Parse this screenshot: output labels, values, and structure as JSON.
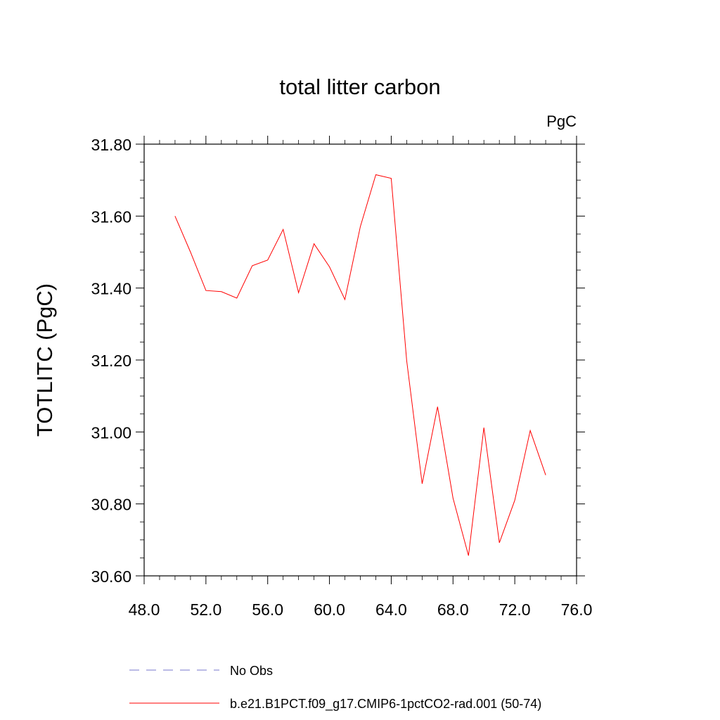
{
  "chart_data": {
    "type": "line",
    "title": "total litter carbon",
    "units_label": "PgC",
    "ylabel": "TOTLITC  (PgC)",
    "xlabel": "",
    "xlim": [
      48,
      76
    ],
    "ylim": [
      30.6,
      31.8
    ],
    "x_ticks": [
      48,
      52,
      56,
      60,
      64,
      68,
      72,
      76
    ],
    "x_tick_labels": [
      "48.0",
      "52.0",
      "56.0",
      "60.0",
      "64.0",
      "68.0",
      "72.0",
      "76.0"
    ],
    "y_ticks": [
      30.6,
      30.8,
      31.0,
      31.2,
      31.4,
      31.6,
      31.8
    ],
    "y_tick_labels": [
      "30.60",
      "30.80",
      "31.00",
      "31.20",
      "31.40",
      "31.60",
      "31.80"
    ],
    "grid": false,
    "legend_position": "bottom",
    "series": [
      {
        "name": "No Obs",
        "color": "#7777cc",
        "dash": "dashed",
        "x": [],
        "y": []
      },
      {
        "name": "b.e21.B1PCT.f09_g17.CMIP6-1pctCO2-rad.001 (50-74)",
        "color": "#ff0000",
        "dash": "solid",
        "x": [
          50,
          51,
          52,
          53,
          54,
          55,
          56,
          57,
          58,
          59,
          60,
          61,
          62,
          63,
          64,
          65,
          66,
          67,
          68,
          69,
          70,
          71,
          72,
          73,
          74
        ],
        "y": [
          31.6,
          31.5,
          31.393,
          31.39,
          31.372,
          31.462,
          31.478,
          31.563,
          31.387,
          31.523,
          31.459,
          31.368,
          31.571,
          31.715,
          31.705,
          31.198,
          30.856,
          31.07,
          30.816,
          30.656,
          31.012,
          30.692,
          30.81,
          31.004,
          30.88
        ]
      }
    ]
  }
}
